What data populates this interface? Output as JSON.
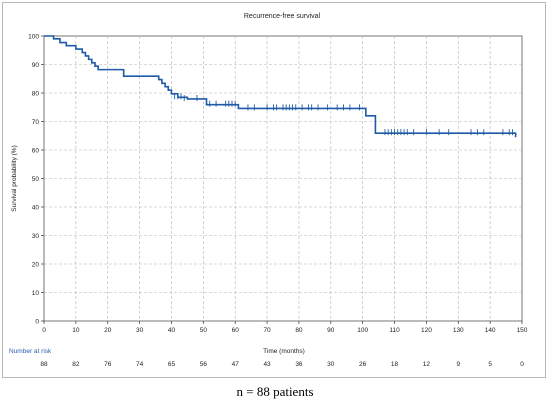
{
  "caption": "n = 88 patients",
  "chart_data": {
    "type": "line",
    "title": "Recurrence-free survival",
    "xlabel": "Time (months)",
    "ylabel": "Survival probability (%)",
    "xlim": [
      0,
      150
    ],
    "ylim": [
      0,
      100
    ],
    "x_ticks": [
      0,
      10,
      20,
      30,
      40,
      50,
      60,
      70,
      80,
      90,
      100,
      110,
      120,
      130,
      140,
      150
    ],
    "y_ticks": [
      0,
      10,
      20,
      30,
      40,
      50,
      60,
      70,
      80,
      90,
      100
    ],
    "grid": true,
    "line_color": "#1f5aa6",
    "series": [
      {
        "steps": [
          [
            0,
            100
          ],
          [
            3,
            99
          ],
          [
            5,
            97.7
          ],
          [
            7,
            96.6
          ],
          [
            10,
            95.4
          ],
          [
            12,
            94.2
          ],
          [
            13,
            93
          ],
          [
            14,
            91.8
          ],
          [
            15,
            90.6
          ],
          [
            16,
            89.4
          ],
          [
            17,
            88.2
          ],
          [
            25,
            85.9
          ],
          [
            36,
            84.7
          ],
          [
            37,
            83.4
          ],
          [
            38,
            82.2
          ],
          [
            39,
            81
          ],
          [
            40,
            79.7
          ],
          [
            42,
            78.5
          ],
          [
            45,
            77.9
          ],
          [
            51,
            75.9
          ],
          [
            61,
            74.6
          ],
          [
            101,
            72
          ],
          [
            104,
            65.9
          ],
          [
            148,
            64.5
          ]
        ],
        "end_x": 148,
        "censored": [
          [
            41,
            78.5
          ],
          [
            42,
            78.5
          ],
          [
            43,
            78.5
          ],
          [
            44,
            77.9
          ],
          [
            48,
            77.9
          ],
          [
            52,
            75.9
          ],
          [
            54,
            75.9
          ],
          [
            57,
            75.9
          ],
          [
            58,
            75.9
          ],
          [
            59,
            75.9
          ],
          [
            60,
            75.9
          ],
          [
            64,
            74.6
          ],
          [
            66,
            74.6
          ],
          [
            70,
            74.6
          ],
          [
            72,
            74.6
          ],
          [
            73,
            74.6
          ],
          [
            75,
            74.6
          ],
          [
            76,
            74.6
          ],
          [
            77,
            74.6
          ],
          [
            78,
            74.6
          ],
          [
            79,
            74.6
          ],
          [
            81,
            74.6
          ],
          [
            83,
            74.6
          ],
          [
            84,
            74.6
          ],
          [
            86,
            74.6
          ],
          [
            89,
            74.6
          ],
          [
            92,
            74.6
          ],
          [
            94,
            74.6
          ],
          [
            96,
            74.6
          ],
          [
            99,
            74.6
          ],
          [
            107,
            65.9
          ],
          [
            108,
            65.9
          ],
          [
            109,
            65.9
          ],
          [
            110,
            65.9
          ],
          [
            111,
            65.9
          ],
          [
            112,
            65.9
          ],
          [
            113,
            65.9
          ],
          [
            114,
            65.9
          ],
          [
            116,
            65.9
          ],
          [
            120,
            65.9
          ],
          [
            124,
            65.9
          ],
          [
            127,
            65.9
          ],
          [
            134,
            65.9
          ],
          [
            136,
            65.9
          ],
          [
            138,
            65.9
          ],
          [
            144,
            65.9
          ],
          [
            146,
            65.9
          ],
          [
            147,
            65.9
          ]
        ]
      }
    ],
    "risk_table": {
      "label": "Number at risk",
      "times": [
        0,
        10,
        20,
        30,
        40,
        50,
        60,
        70,
        80,
        90,
        100,
        110,
        120,
        130,
        140,
        150
      ],
      "counts": [
        "88",
        "82",
        "76",
        "74",
        "65",
        "56",
        "47",
        "43",
        "36",
        "30",
        "26",
        "18",
        "12",
        "9",
        "5",
        "0"
      ]
    }
  }
}
